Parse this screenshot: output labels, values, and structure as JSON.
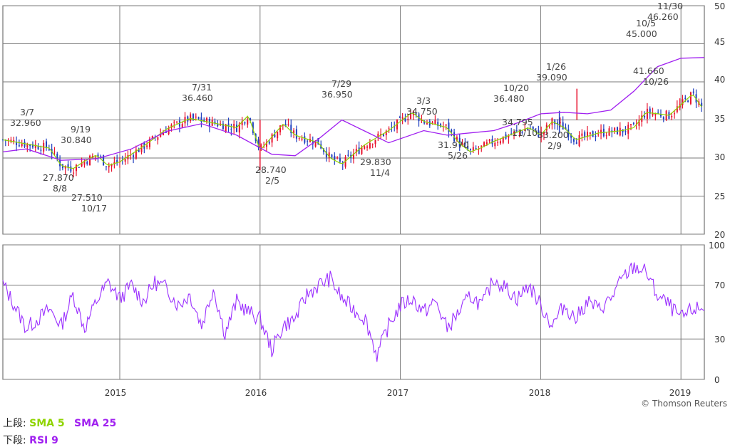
{
  "legend": {
    "upper_prefix": "上段:",
    "sma5_label": "SMA 5",
    "sma25_label": "SMA 25",
    "lower_prefix": "下段:",
    "rsi_label": "RSI 9"
  },
  "credit": "© Thomson Reuters",
  "colors": {
    "up": "#e8112d",
    "down": "#1f3fbf",
    "sma5": "#8fd400",
    "sma25": "#a020f0",
    "rsi": "#9b30ff",
    "grid": "#7a7a7a",
    "frame": "#555555"
  },
  "chart_data": [
    {
      "type": "candlestick",
      "panel": "price",
      "y_ticks": [
        "50",
        "45",
        "40",
        "35",
        "30",
        "25",
        "20"
      ],
      "ylim": [
        20,
        50
      ],
      "x_ticks": [
        "2015",
        "2016",
        "2017",
        "2018",
        "2019"
      ],
      "xlim": [
        "2014-03",
        "2019-03"
      ],
      "series": [
        {
          "name": "SMA 5",
          "color": "#8fd400"
        },
        {
          "name": "SMA 25",
          "color": "#a020f0"
        }
      ],
      "sma25_points": [
        [
          "2014-03",
          30.8
        ],
        [
          "2014-05",
          31.2
        ],
        [
          "2014-08",
          29.7
        ],
        [
          "2014-11",
          29.9
        ],
        [
          "2015-02",
          31.2
        ],
        [
          "2015-05",
          33.5
        ],
        [
          "2015-08",
          34.5
        ],
        [
          "2015-11",
          33.0
        ],
        [
          "2016-02",
          30.5
        ],
        [
          "2016-04",
          30.3
        ],
        [
          "2016-06",
          32.5
        ],
        [
          "2016-08",
          35.0
        ],
        [
          "2016-10",
          33.5
        ],
        [
          "2016-12",
          32.0
        ],
        [
          "2017-03",
          33.6
        ],
        [
          "2017-05",
          33.0
        ],
        [
          "2017-07",
          33.3
        ],
        [
          "2017-09",
          33.6
        ],
        [
          "2017-11",
          34.6
        ],
        [
          "2018-01",
          35.8
        ],
        [
          "2018-03",
          36.0
        ],
        [
          "2018-05",
          35.8
        ],
        [
          "2018-07",
          36.3
        ],
        [
          "2018-09",
          38.8
        ],
        [
          "2018-11",
          42.0
        ],
        [
          "2019-01",
          43.1
        ],
        [
          "2019-03",
          43.2
        ]
      ],
      "annotations": [
        {
          "date": "3/7",
          "value": "32.960"
        },
        {
          "date": "9/19",
          "value": "30.840"
        },
        {
          "date": "8/8",
          "value": "27.870"
        },
        {
          "date": "10/17",
          "value": "27.510"
        },
        {
          "date": "7/31",
          "value": "36.460"
        },
        {
          "date": "2/5",
          "value": "28.740"
        },
        {
          "date": "7/29",
          "value": "36.950"
        },
        {
          "date": "11/4",
          "value": "29.830"
        },
        {
          "date": "3/3",
          "value": "34.750"
        },
        {
          "date": "5/26",
          "value": "31.970"
        },
        {
          "date": "10/20",
          "value": "36.480"
        },
        {
          "date": "11/10",
          "value": "34.795"
        },
        {
          "date": "1/26",
          "value": "39.090"
        },
        {
          "date": "2/9",
          "value": "33.200"
        },
        {
          "date": "10/5",
          "value": "45.000"
        },
        {
          "date": "11/30",
          "value": "46.260"
        },
        {
          "date": "10/26",
          "value": "41.660"
        }
      ]
    },
    {
      "type": "line",
      "panel": "rsi",
      "y_ticks": [
        "100",
        "70",
        "30",
        "0"
      ],
      "ylim": [
        0,
        100
      ],
      "series": [
        {
          "name": "RSI 9",
          "color": "#9b30ff",
          "points": [
            [
              "2014-03",
              71
            ],
            [
              "2014-04",
              55
            ],
            [
              "2014-05",
              38
            ],
            [
              "2014-06",
              45
            ],
            [
              "2014-07",
              52
            ],
            [
              "2014-08",
              40
            ],
            [
              "2014-09",
              63
            ],
            [
              "2014-10",
              38
            ],
            [
              "2014-11",
              58
            ],
            [
              "2014-12",
              72
            ],
            [
              "2015-01",
              60
            ],
            [
              "2015-02",
              70
            ],
            [
              "2015-03",
              58
            ],
            [
              "2015-04",
              72
            ],
            [
              "2015-05",
              68
            ],
            [
              "2015-06",
              55
            ],
            [
              "2015-07",
              63
            ],
            [
              "2015-08",
              40
            ],
            [
              "2015-09",
              68
            ],
            [
              "2015-10",
              34
            ],
            [
              "2015-11",
              58
            ],
            [
              "2015-12",
              50
            ],
            [
              "2016-01",
              45
            ],
            [
              "2016-02",
              22
            ],
            [
              "2016-03",
              40
            ],
            [
              "2016-04",
              45
            ],
            [
              "2016-05",
              63
            ],
            [
              "2016-06",
              70
            ],
            [
              "2016-07",
              75
            ],
            [
              "2016-08",
              60
            ],
            [
              "2016-09",
              52
            ],
            [
              "2016-10",
              45
            ],
            [
              "2016-11",
              18
            ],
            [
              "2016-12",
              40
            ],
            [
              "2017-01",
              55
            ],
            [
              "2017-02",
              60
            ],
            [
              "2017-03",
              50
            ],
            [
              "2017-04",
              58
            ],
            [
              "2017-05",
              38
            ],
            [
              "2017-06",
              50
            ],
            [
              "2017-07",
              62
            ],
            [
              "2017-08",
              55
            ],
            [
              "2017-09",
              75
            ],
            [
              "2017-10",
              68
            ],
            [
              "2017-11",
              60
            ],
            [
              "2017-12",
              70
            ],
            [
              "2018-01",
              55
            ],
            [
              "2018-02",
              40
            ],
            [
              "2018-03",
              55
            ],
            [
              "2018-04",
              45
            ],
            [
              "2018-05",
              58
            ],
            [
              "2018-06",
              52
            ],
            [
              "2018-07",
              60
            ],
            [
              "2018-08",
              75
            ],
            [
              "2018-09",
              84
            ],
            [
              "2018-10",
              80
            ],
            [
              "2018-11",
              62
            ],
            [
              "2018-12",
              55
            ],
            [
              "2019-01",
              45
            ],
            [
              "2019-02",
              52
            ],
            [
              "2019-03",
              53
            ]
          ]
        }
      ]
    }
  ]
}
